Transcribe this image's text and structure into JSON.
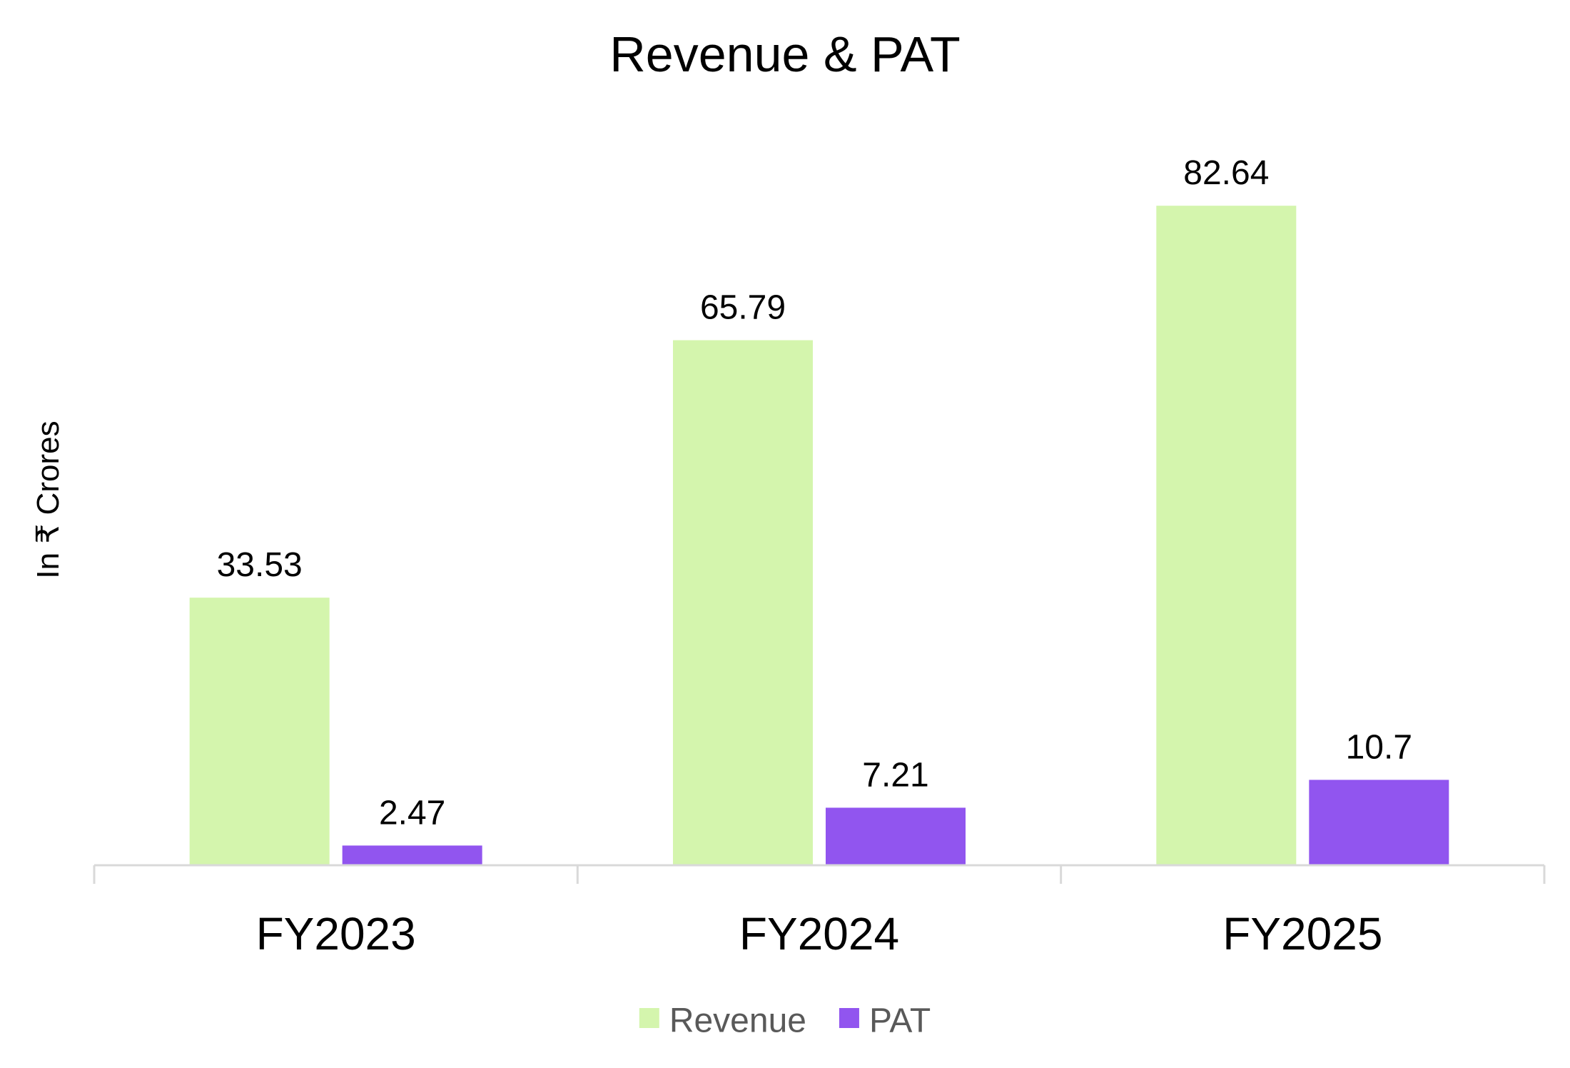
{
  "chart_data": {
    "type": "bar",
    "title": "Revenue & PAT",
    "ylabel": "In ₹ Crores",
    "xlabel": "",
    "categories": [
      "FY2023",
      "FY2024",
      "FY2025"
    ],
    "series": [
      {
        "name": "Revenue",
        "values": [
          33.53,
          65.79,
          82.64
        ],
        "color": "#d4f5ad"
      },
      {
        "name": "PAT",
        "values": [
          2.47,
          7.21,
          10.7
        ],
        "color": "#9155ef"
      }
    ],
    "ylim": [
      0,
      95
    ],
    "grid": false,
    "legend": "bottom-center",
    "data_labels": true,
    "colors": {
      "axis_line": "#d9d9d9",
      "text": "#000000",
      "legend_text": "#595959"
    }
  }
}
